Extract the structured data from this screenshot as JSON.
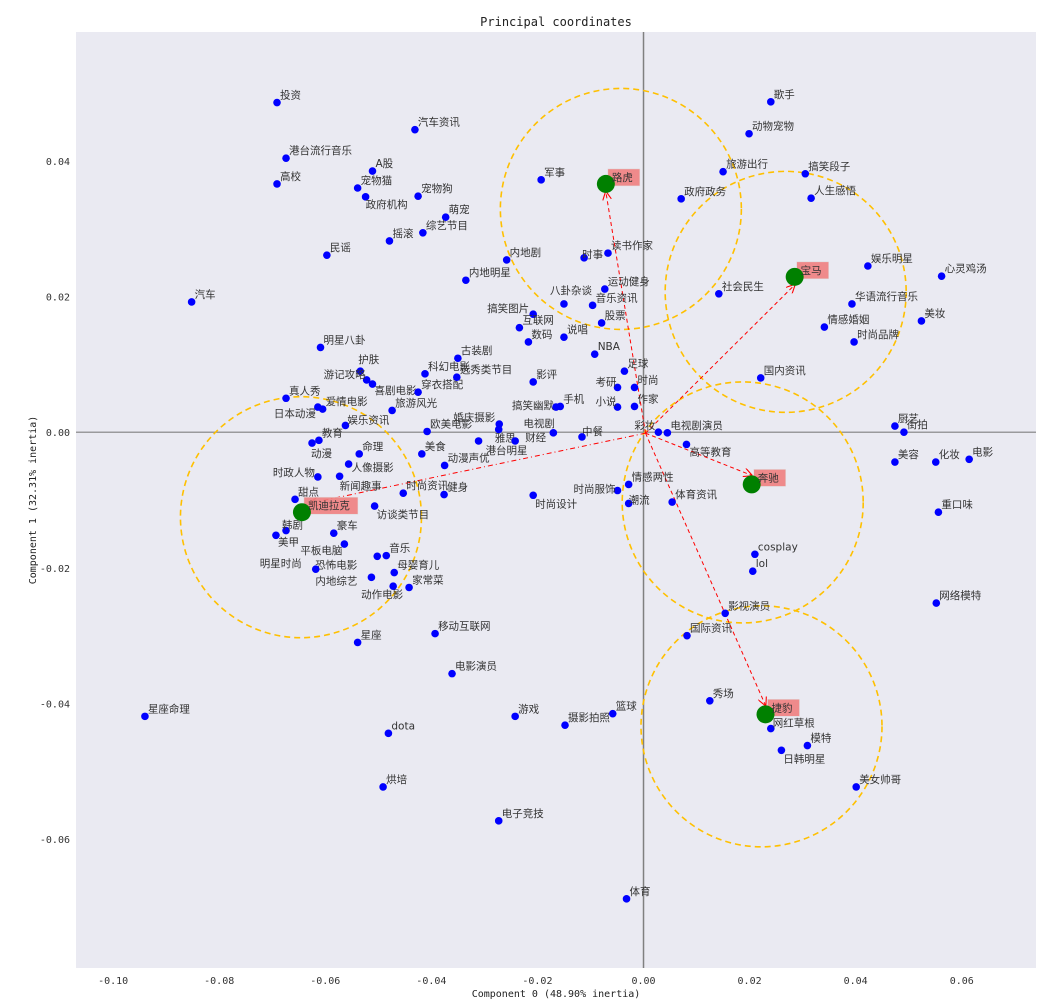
{
  "chart_data": {
    "type": "scatter",
    "title": "Principal coordinates",
    "xlabel": "Component 0 (48.90% inertia)",
    "ylabel": "Component 1 (32.31% inertia)",
    "xlim": [
      -0.107,
      0.074
    ],
    "ylim": [
      -0.079,
      0.059
    ],
    "xticks": [
      -0.1,
      -0.08,
      -0.06,
      -0.04,
      -0.02,
      0.0,
      0.02,
      0.04,
      0.06
    ],
    "xtick_labels": [
      "-0.10",
      "-0.08",
      "-0.06",
      "-0.04",
      "-0.02",
      "0.00",
      "0.02",
      "0.04",
      "0.06"
    ],
    "yticks": [
      0.04,
      0.02,
      0.0,
      -0.02,
      -0.04,
      -0.06
    ],
    "ytick_labels": [
      "0.04",
      "0.02",
      "0.00",
      "-0.02",
      "-0.04",
      "-0.06"
    ],
    "grid": false,
    "colors": {
      "background": "#eaeaf2",
      "points": "#0000ff",
      "brands": "#008000",
      "brand_label_bg": "#f08080",
      "arrows": "#ff0000",
      "circles": "#ffc000",
      "axes": "#808080"
    },
    "points": [
      {
        "label": "投资",
        "x": -0.0691,
        "y": 0.0486
      },
      {
        "label": "汽车资讯",
        "x": -0.0431,
        "y": 0.0446
      },
      {
        "label": "港台流行音乐",
        "x": -0.0674,
        "y": 0.0404
      },
      {
        "label": "A股",
        "x": -0.0511,
        "y": 0.0385
      },
      {
        "label": "高校",
        "x": -0.0691,
        "y": 0.0366
      },
      {
        "label": "宠物猫",
        "x": -0.0539,
        "y": 0.036
      },
      {
        "label": "政府机构",
        "x": -0.0524,
        "y": 0.0347
      },
      {
        "label": "宠物狗",
        "x": -0.0425,
        "y": 0.0348
      },
      {
        "label": "萌宠",
        "x": -0.0373,
        "y": 0.0317
      },
      {
        "label": "综艺节目",
        "x": -0.0416,
        "y": 0.0294
      },
      {
        "label": "摇滚",
        "x": -0.0479,
        "y": 0.0282
      },
      {
        "label": "民谣",
        "x": -0.0597,
        "y": 0.0261
      },
      {
        "label": "汽车",
        "x": -0.0852,
        "y": 0.0192
      },
      {
        "label": "内地明星",
        "x": -0.0335,
        "y": 0.0224
      },
      {
        "label": "明星八卦",
        "x": -0.0609,
        "y": 0.0125
      },
      {
        "label": "古装剧",
        "x": -0.035,
        "y": 0.0109
      },
      {
        "label": "护肤",
        "x": -0.0534,
        "y": 0.009
      },
      {
        "label": "科幻电影",
        "x": -0.0412,
        "y": 0.0086
      },
      {
        "label": "游记攻略",
        "x": -0.0522,
        "y": 0.0077
      },
      {
        "label": "喜剧电影",
        "x": -0.0511,
        "y": 0.0071
      },
      {
        "label": "穿衣搭配",
        "x": -0.0425,
        "y": 0.0059
      },
      {
        "label": "选秀类节目",
        "x": -0.0352,
        "y": 0.0081
      },
      {
        "label": "真人秀",
        "x": -0.0674,
        "y": 0.005
      },
      {
        "label": "日本动漫",
        "x": -0.0614,
        "y": 0.0037
      },
      {
        "label": "爱情电影",
        "x": -0.0605,
        "y": 0.0034
      },
      {
        "label": "旅游风光",
        "x": -0.0474,
        "y": 0.0032
      },
      {
        "label": "娱乐资讯",
        "x": -0.0562,
        "y": 0.001
      },
      {
        "label": "欧美电影",
        "x": -0.0408,
        "y": 0.0001
      },
      {
        "label": "教育",
        "x": -0.0612,
        "y": -0.0012
      },
      {
        "label": "动漫",
        "x": -0.0625,
        "y": -0.0016
      },
      {
        "label": "命理",
        "x": -0.0536,
        "y": -0.0032
      },
      {
        "label": "美食",
        "x": -0.0418,
        "y": -0.0032
      },
      {
        "label": "港台明星",
        "x": -0.0311,
        "y": -0.0013
      },
      {
        "label": "人像摄影",
        "x": -0.0556,
        "y": -0.0047
      },
      {
        "label": "新闻趣事",
        "x": -0.0573,
        "y": -0.0065
      },
      {
        "label": "时政人物",
        "x": -0.0614,
        "y": -0.0066
      },
      {
        "label": "动漫声优",
        "x": -0.0375,
        "y": -0.0049
      },
      {
        "label": "甜点",
        "x": -0.0657,
        "y": -0.0099
      },
      {
        "label": "时尚资讯",
        "x": -0.0453,
        "y": -0.009
      },
      {
        "label": "健身",
        "x": -0.0376,
        "y": -0.0092
      },
      {
        "label": "访谈类节目",
        "x": -0.0507,
        "y": -0.0109
      },
      {
        "label": "韩剧",
        "x": -0.0674,
        "y": -0.0145
      },
      {
        "label": "美甲",
        "x": -0.0693,
        "y": -0.0152
      },
      {
        "label": "豪车",
        "x": -0.0584,
        "y": -0.0149
      },
      {
        "label": "平板电脑",
        "x": -0.0564,
        "y": -0.0165
      },
      {
        "label": "恐怖电影",
        "x": -0.0502,
        "y": -0.0183
      },
      {
        "label": "音乐",
        "x": -0.0485,
        "y": -0.0182
      },
      {
        "label": "明星时尚",
        "x": -0.0618,
        "y": -0.0202
      },
      {
        "label": "母婴育儿",
        "x": -0.047,
        "y": -0.0207
      },
      {
        "label": "内地综艺",
        "x": -0.0513,
        "y": -0.0214
      },
      {
        "label": "家常菜",
        "x": -0.0442,
        "y": -0.0229
      },
      {
        "label": "动作电影",
        "x": -0.0472,
        "y": -0.0227
      },
      {
        "label": "星座",
        "x": -0.0539,
        "y": -0.031
      },
      {
        "label": "移动互联网",
        "x": -0.0393,
        "y": -0.0297
      },
      {
        "label": "电影演员",
        "x": -0.0361,
        "y": -0.0356
      },
      {
        "label": "星座命理",
        "x": -0.094,
        "y": -0.0419
      },
      {
        "label": "dota",
        "x": -0.0481,
        "y": -0.0444
      },
      {
        "label": "烘培",
        "x": -0.0491,
        "y": -0.0523
      },
      {
        "label": "游戏",
        "x": -0.0242,
        "y": -0.0419
      },
      {
        "label": "摄影拍照",
        "x": -0.0148,
        "y": -0.0432
      },
      {
        "label": "篮球",
        "x": -0.0058,
        "y": -0.0415
      },
      {
        "label": "电子竞技",
        "x": -0.0273,
        "y": -0.0573
      },
      {
        "label": "体育",
        "x": -0.0032,
        "y": -0.0688
      },
      {
        "label": "内地剧",
        "x": -0.0258,
        "y": 0.0254
      },
      {
        "label": "军事",
        "x": -0.0193,
        "y": 0.0372
      },
      {
        "label": "时事",
        "x": -0.0112,
        "y": 0.0257
      },
      {
        "label": "读书作家",
        "x": -0.0067,
        "y": 0.0264
      },
      {
        "label": "运动健身",
        "x": -0.0073,
        "y": 0.0211
      },
      {
        "label": "八卦杂谈",
        "x": -0.015,
        "y": 0.0189
      },
      {
        "label": "音乐资讯",
        "x": -0.0096,
        "y": 0.0187
      },
      {
        "label": "搞笑图片",
        "x": -0.0208,
        "y": 0.0174
      },
      {
        "label": "互联网",
        "x": -0.0234,
        "y": 0.0154
      },
      {
        "label": "股票",
        "x": -0.0079,
        "y": 0.0161
      },
      {
        "label": "说唱",
        "x": -0.015,
        "y": 0.014
      },
      {
        "label": "数码",
        "x": -0.0217,
        "y": 0.0133
      },
      {
        "label": "NBA",
        "x": -0.0092,
        "y": 0.0115
      },
      {
        "label": "足球",
        "x": -0.0036,
        "y": 0.009
      },
      {
        "label": "考研",
        "x": -0.0049,
        "y": 0.0066
      },
      {
        "label": "时尚",
        "x": -0.0017,
        "y": 0.0066
      },
      {
        "label": "影评",
        "x": -0.0208,
        "y": 0.0074
      },
      {
        "label": "搞笑幽默",
        "x": -0.0165,
        "y": 0.0037
      },
      {
        "label": "手机",
        "x": -0.0157,
        "y": 0.0038
      },
      {
        "label": "小说",
        "x": -0.0049,
        "y": 0.0037
      },
      {
        "label": "作家",
        "x": -0.0017,
        "y": 0.0038
      },
      {
        "label": "婚庆摄影",
        "x": -0.0272,
        "y": 0.0012
      },
      {
        "label": "雅思",
        "x": -0.0273,
        "y": 0.0004
      },
      {
        "label": "电视剧",
        "x": -0.017,
        "y": -0.0001
      },
      {
        "label": "财经",
        "x": -0.0242,
        "y": -0.0013
      },
      {
        "label": "中餐",
        "x": -0.0116,
        "y": -0.0007
      },
      {
        "label": "彩妆",
        "x": 0.0028,
        "y": 0.0
      },
      {
        "label": "电视剧演员",
        "x": 0.0045,
        "y": -0.0001
      },
      {
        "label": "高等教育",
        "x": 0.0081,
        "y": -0.0018
      },
      {
        "label": "时尚服饰",
        "x": -0.0049,
        "y": -0.0086
      },
      {
        "label": "情感两性",
        "x": -0.0028,
        "y": -0.0077
      },
      {
        "label": "潮流",
        "x": -0.0028,
        "y": -0.0105
      },
      {
        "label": "时尚设计",
        "x": -0.0208,
        "y": -0.0093
      },
      {
        "label": "体育资讯",
        "x": 0.0054,
        "y": -0.0103
      },
      {
        "label": "cosplay",
        "x": 0.021,
        "y": -0.018
      },
      {
        "label": "lol",
        "x": 0.0206,
        "y": -0.0205
      },
      {
        "label": "影视演员",
        "x": 0.0154,
        "y": -0.0267
      },
      {
        "label": "国际资讯",
        "x": 0.0082,
        "y": -0.03
      },
      {
        "label": "秀场",
        "x": 0.0125,
        "y": -0.0396
      },
      {
        "label": "网红草根",
        "x": 0.024,
        "y": -0.0437
      },
      {
        "label": "模特",
        "x": 0.0309,
        "y": -0.0462
      },
      {
        "label": "日韩明星",
        "x": 0.026,
        "y": -0.0469
      },
      {
        "label": "美女帅哥",
        "x": 0.0401,
        "y": -0.0523
      },
      {
        "label": "歌手",
        "x": 0.024,
        "y": 0.0487
      },
      {
        "label": "动物宠物",
        "x": 0.0199,
        "y": 0.044
      },
      {
        "label": "旅游出行",
        "x": 0.015,
        "y": 0.0384
      },
      {
        "label": "搞笑段子",
        "x": 0.0305,
        "y": 0.0381
      },
      {
        "label": "政府政务",
        "x": 0.0071,
        "y": 0.0344
      },
      {
        "label": "人生感悟",
        "x": 0.0316,
        "y": 0.0345
      },
      {
        "label": "娱乐明星",
        "x": 0.0423,
        "y": 0.0245
      },
      {
        "label": "心灵鸡汤",
        "x": 0.0562,
        "y": 0.023
      },
      {
        "label": "社会民生",
        "x": 0.0142,
        "y": 0.0204
      },
      {
        "label": "华语流行音乐",
        "x": 0.0393,
        "y": 0.0189
      },
      {
        "label": "美妆",
        "x": 0.0524,
        "y": 0.0164
      },
      {
        "label": "情感婚姻",
        "x": 0.0341,
        "y": 0.0155
      },
      {
        "label": "时尚品牌",
        "x": 0.0397,
        "y": 0.0133
      },
      {
        "label": "国内资讯",
        "x": 0.0221,
        "y": 0.008
      },
      {
        "label": "厨艺",
        "x": 0.0474,
        "y": 0.0009
      },
      {
        "label": "街拍",
        "x": 0.0491,
        "y": 0.0
      },
      {
        "label": "美容",
        "x": 0.0474,
        "y": -0.0044
      },
      {
        "label": "化妆",
        "x": 0.0551,
        "y": -0.0044
      },
      {
        "label": "电影",
        "x": 0.0614,
        "y": -0.004
      },
      {
        "label": "重口味",
        "x": 0.0556,
        "y": -0.0118
      },
      {
        "label": "网络模特",
        "x": 0.0552,
        "y": -0.0252
      }
    ],
    "brands": [
      {
        "label": "路虎",
        "x": -0.0071,
        "y": 0.0366
      },
      {
        "label": "宝马",
        "x": 0.0285,
        "y": 0.0229
      },
      {
        "label": "奔驰",
        "x": 0.0204,
        "y": -0.0077
      },
      {
        "label": "捷豹",
        "x": 0.023,
        "y": -0.0416
      },
      {
        "label": "凯迪拉克",
        "x": -0.0644,
        "y": -0.0118
      }
    ]
  }
}
